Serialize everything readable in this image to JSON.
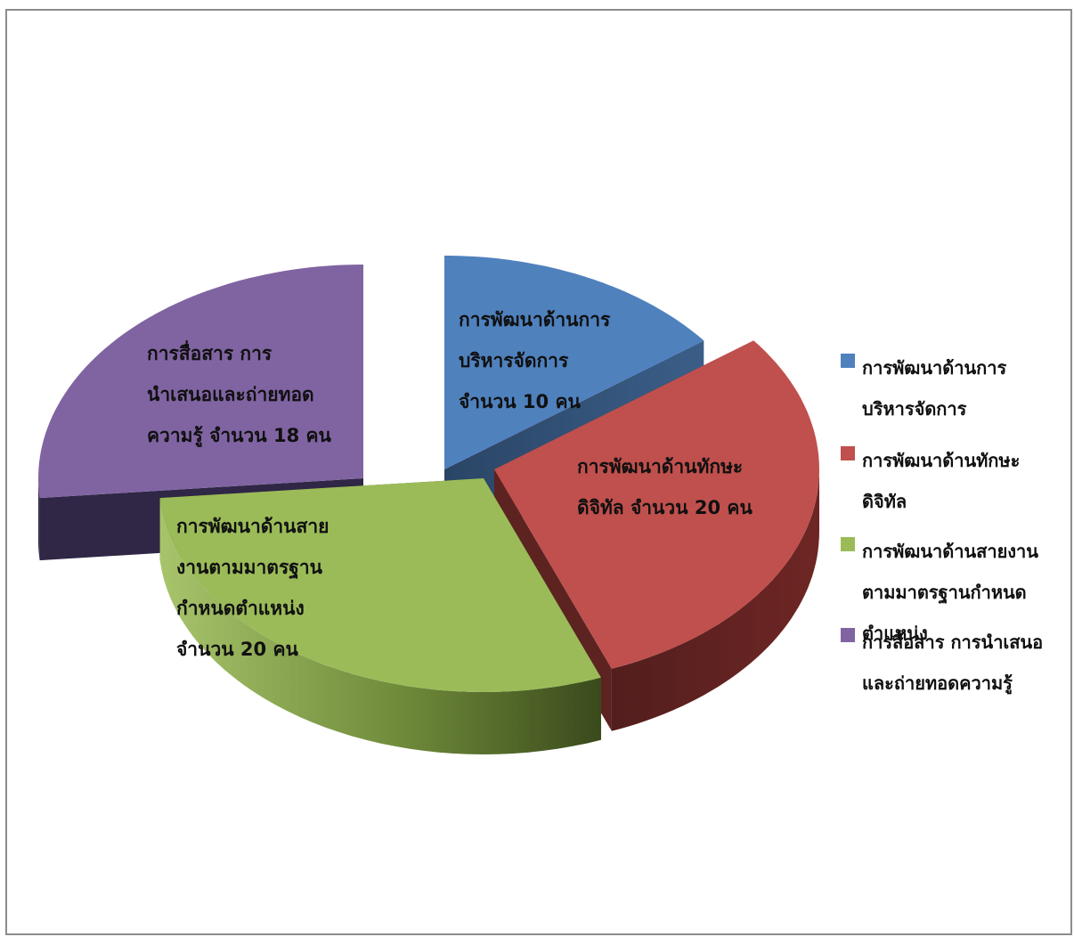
{
  "chart_data": {
    "type": "pie",
    "style": "3d-exploded",
    "legend_position": "right",
    "slices": [
      {
        "name": "การพัฒนาด้านการบริหารจัดการ",
        "value": 10,
        "color": "#4F81BD",
        "label_lines": [
          "การพัฒนาด้านการ",
          "บริหารจัดการ",
          "จำนวน 10 คน"
        ]
      },
      {
        "name": "การพัฒนาด้านทักษะดิจิทัล",
        "value": 20,
        "color": "#C0504D",
        "label_lines": [
          "การพัฒนาด้านทักษะ",
          "ดิจิทัล จำนวน 20 คน"
        ]
      },
      {
        "name": "การพัฒนาด้านสายงานตามมาตรฐานกำหนดตำแหน่ง",
        "value": 20,
        "color": "#9BBB59",
        "label_lines": [
          "การพัฒนาด้านสาย",
          "งานตามมาตรฐาน",
          "กำหนดตำแหน่ง",
          "จำนวน 20 คน"
        ]
      },
      {
        "name": "การสื่อสาร การนำเสนอและถ่ายทอดความรู้",
        "value": 18,
        "color": "#8064A2",
        "label_lines": [
          "การสื่อสาร การ",
          "นำเสนอและถ่ายทอด",
          "ความรู้ จำนวน 18 คน"
        ]
      }
    ],
    "legend": [
      {
        "lines": [
          "การพัฒนาด้านการ",
          "บริหารจัดการ"
        ],
        "color": "#4F81BD"
      },
      {
        "lines": [
          "การพัฒนาด้านทักษะ",
          "ดิจิทัล"
        ],
        "color": "#C0504D"
      },
      {
        "lines": [
          "การพัฒนาด้านสายงาน",
          "ตามมาตรฐานกำหนด",
          "ตำแหน่ง"
        ],
        "color": "#9BBB59"
      },
      {
        "lines": [
          "การสื่อสาร การนำเสนอ",
          "และถ่ายทอดความรู้"
        ],
        "color": "#8064A2"
      }
    ]
  }
}
